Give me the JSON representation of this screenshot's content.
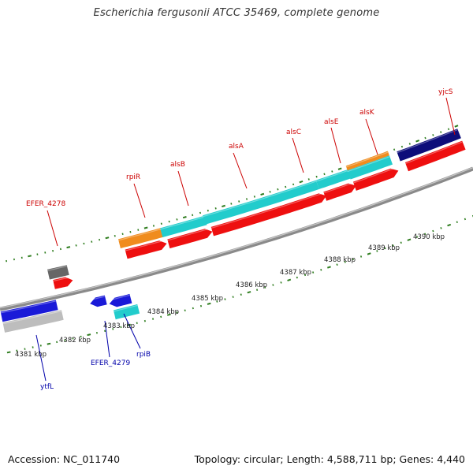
{
  "title": "Escherichia fergusonii ATCC 35469, complete genome",
  "footer": {
    "accession": "Accession: NC_011740",
    "topology": "Topology: circular; Length: 4,588,711 bp; Genes: 4,440"
  },
  "colors": {
    "backbone": "#8a8a8a",
    "tick": "#2e7d1e",
    "tick_label": "#222222",
    "upper_label": "#cc0000",
    "lower_label": "#0000aa"
  },
  "scale_labels": [
    "4381 kbp",
    "4382 kbp",
    "4383 kbp",
    "4384 kbp",
    "4385 kbp",
    "4386 kbp",
    "4387 kbp",
    "4388 kbp",
    "4389 kbp",
    "4390 kbp"
  ],
  "upper_labels": [
    "EFER_4278",
    "rpiR",
    "alsB",
    "alsA",
    "alsC",
    "alsE",
    "alsK",
    "yjcS"
  ],
  "lower_labels": [
    "ytfL",
    "EFER_4279",
    "rpiB"
  ]
}
